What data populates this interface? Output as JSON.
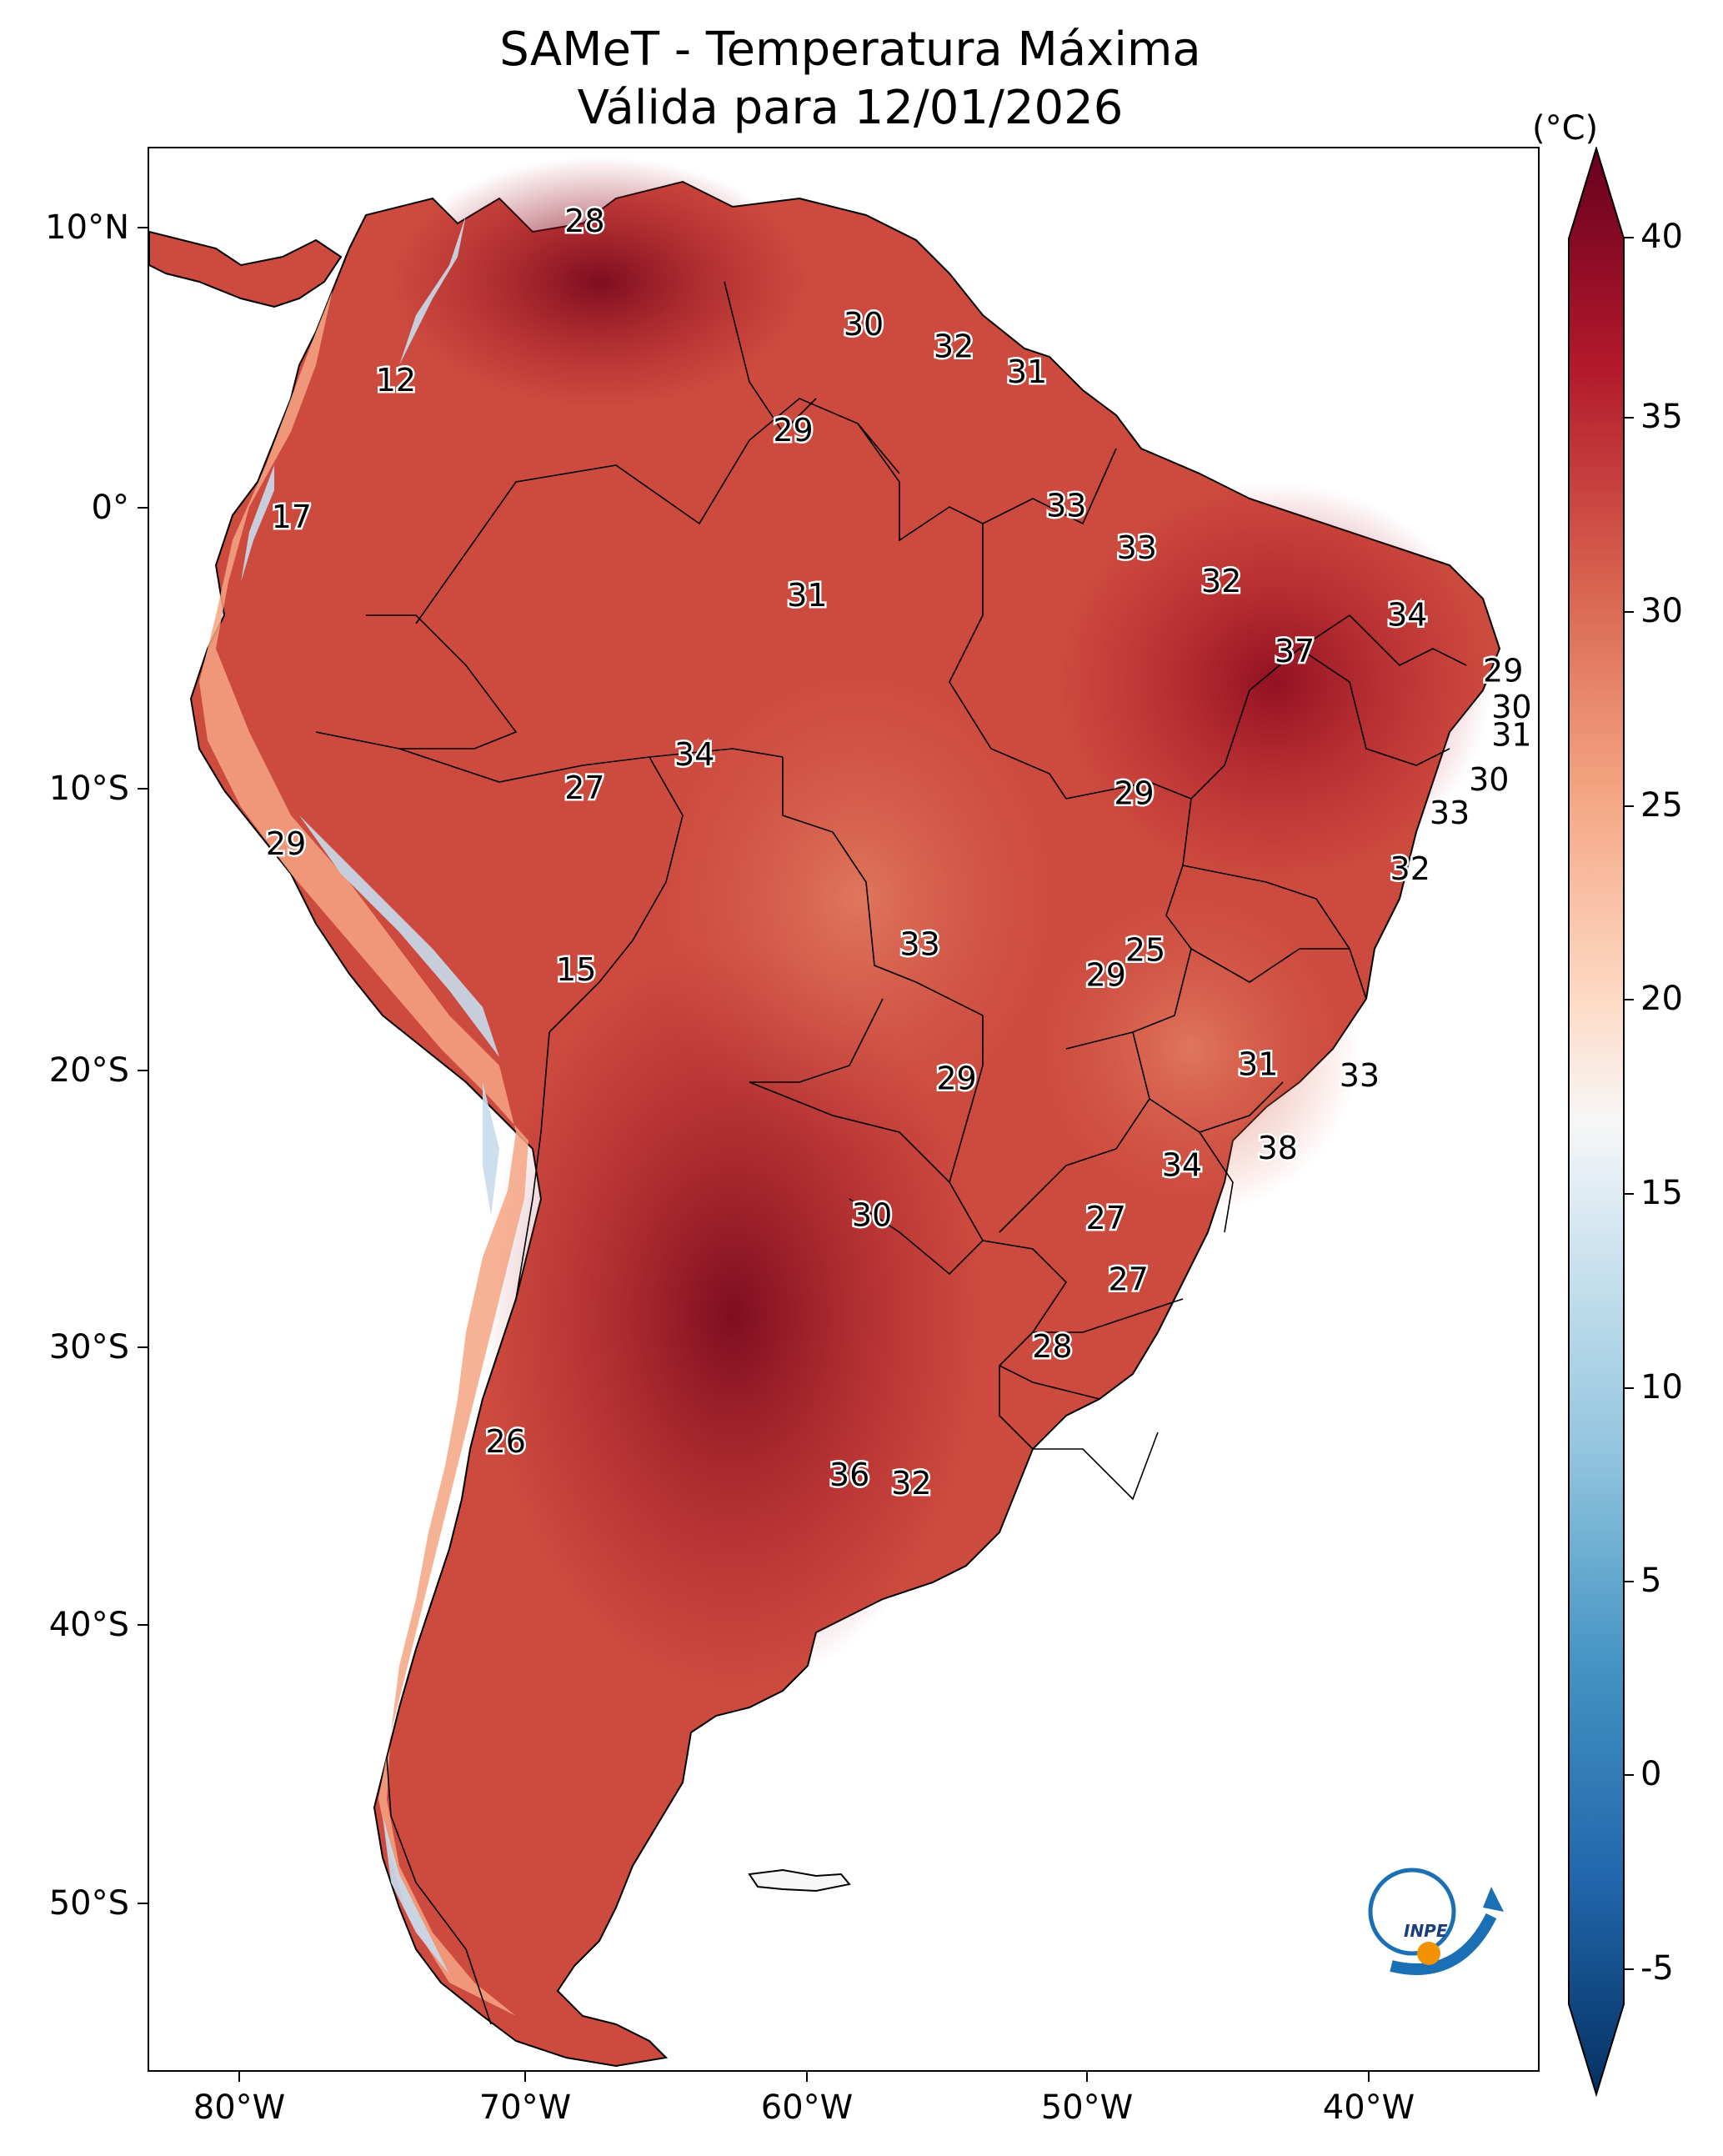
{
  "title": {
    "line1": "SAMeT - Temperatura Máxima",
    "line2": "Válida para 12/01/2026"
  },
  "axes": {
    "lat_ticks": [
      "10°N",
      "0°",
      "10°S",
      "20°S",
      "30°S",
      "40°S",
      "50°S"
    ],
    "lon_ticks": [
      "80°W",
      "70°W",
      "60°W",
      "50°W",
      "40°W"
    ]
  },
  "colorbar": {
    "unit": "(°C)",
    "min": -5,
    "max": 40,
    "ticks": [
      "40",
      "35",
      "30",
      "25",
      "20",
      "15",
      "10",
      "5",
      "0",
      "-5"
    ],
    "colors": {
      "dark_red": "#67001f",
      "red": "#b2182b",
      "light_red": "#d6604d",
      "salmon": "#f4a582",
      "peach": "#fddbc7",
      "white": "#f7f7f7",
      "light_blue": "#d1e5f0",
      "sky_blue": "#92c5de",
      "blue": "#4393c3",
      "mid_blue": "#2166ac",
      "dark_blue": "#053061"
    }
  },
  "stations": [
    {
      "label": "28",
      "lon": -67.8,
      "lat": 10.3
    },
    {
      "label": "12",
      "lon": -74.5,
      "lat": 4.6
    },
    {
      "label": "17",
      "lon": -78.2,
      "lat": -0.3
    },
    {
      "label": "30",
      "lon": -57.9,
      "lat": 6.6
    },
    {
      "label": "32",
      "lon": -54.7,
      "lat": 5.8
    },
    {
      "label": "31",
      "lon": -52.1,
      "lat": 4.9
    },
    {
      "label": "29",
      "lon": -60.4,
      "lat": 2.8
    },
    {
      "label": "33",
      "lon": -50.7,
      "lat": 0.1
    },
    {
      "label": "33",
      "lon": -48.2,
      "lat": -1.4
    },
    {
      "label": "32",
      "lon": -45.2,
      "lat": -2.6
    },
    {
      "label": "31",
      "lon": -59.9,
      "lat": -3.1
    },
    {
      "label": "34",
      "lon": -38.6,
      "lat": -3.8
    },
    {
      "label": "37",
      "lon": -42.6,
      "lat": -5.1
    },
    {
      "label": "29",
      "lon": -35.2,
      "lat": -5.8
    },
    {
      "label": "30",
      "lon": -34.9,
      "lat": -7.1
    },
    {
      "label": "31",
      "lon": -34.9,
      "lat": -8.1
    },
    {
      "label": "34",
      "lon": -63.9,
      "lat": -8.8
    },
    {
      "label": "27",
      "lon": -67.8,
      "lat": -10.0
    },
    {
      "label": "29",
      "lon": -48.3,
      "lat": -10.2
    },
    {
      "label": "30",
      "lon": -35.7,
      "lat": -9.7
    },
    {
      "label": "33",
      "lon": -37.1,
      "lat": -10.9
    },
    {
      "label": "29",
      "lon": -78.4,
      "lat": -12.0
    },
    {
      "label": "32",
      "lon": -38.5,
      "lat": -12.9
    },
    {
      "label": "15",
      "lon": -68.1,
      "lat": -16.5
    },
    {
      "label": "33",
      "lon": -55.9,
      "lat": -15.6
    },
    {
      "label": "25",
      "lon": -47.9,
      "lat": -15.8
    },
    {
      "label": "29",
      "lon": -49.3,
      "lat": -16.7
    },
    {
      "label": "31",
      "lon": -43.9,
      "lat": -19.9
    },
    {
      "label": "33",
      "lon": -40.3,
      "lat": -20.3
    },
    {
      "label": "29",
      "lon": -54.6,
      "lat": -20.4
    },
    {
      "label": "38",
      "lon": -43.2,
      "lat": -22.9
    },
    {
      "label": "34",
      "lon": -46.6,
      "lat": -23.5
    },
    {
      "label": "30",
      "lon": -57.6,
      "lat": -25.3
    },
    {
      "label": "27",
      "lon": -49.3,
      "lat": -25.4
    },
    {
      "label": "27",
      "lon": -48.5,
      "lat": -27.6
    },
    {
      "label": "28",
      "lon": -51.2,
      "lat": -30.0
    },
    {
      "label": "26",
      "lon": -70.6,
      "lat": -33.4
    },
    {
      "label": "36",
      "lon": -58.4,
      "lat": -34.6
    },
    {
      "label": "32",
      "lon": -56.2,
      "lat": -34.9
    }
  ]
}
